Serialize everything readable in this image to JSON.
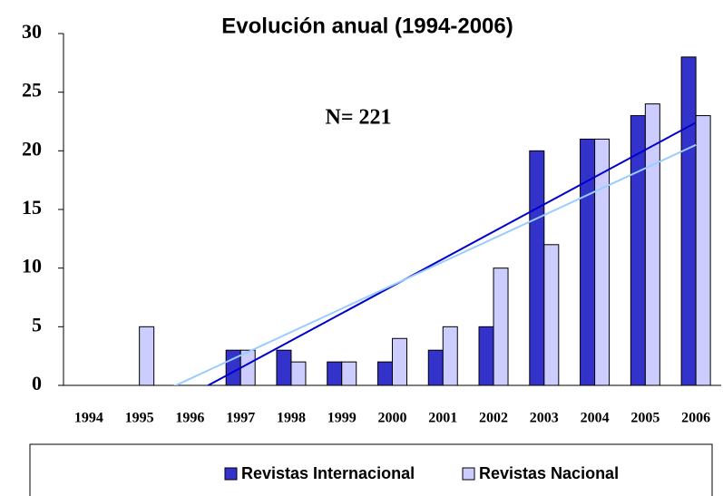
{
  "chart_data": {
    "type": "bar",
    "title": "Evolución anual (1994-2006)",
    "annotation": "N= 221",
    "categories": [
      "1994",
      "1995",
      "1996",
      "1997",
      "1998",
      "1999",
      "2000",
      "2001",
      "2002",
      "2003",
      "2004",
      "2005",
      "2006"
    ],
    "series": [
      {
        "name": "Revistas Internacional",
        "color": "#3333cc",
        "trend_color": "#0000cc",
        "values": [
          0,
          0,
          0,
          3,
          3,
          2,
          2,
          3,
          5,
          20,
          21,
          23,
          28
        ]
      },
      {
        "name": "Revistas Nacional",
        "color": "#ccccff",
        "trend_color": "#99ccff",
        "values": [
          0,
          5,
          0,
          3,
          2,
          2,
          4,
          5,
          10,
          12,
          21,
          24,
          23
        ]
      }
    ],
    "ylim": [
      0,
      30
    ],
    "yticks": [
      0,
      5,
      10,
      15,
      20,
      25,
      30
    ],
    "trendline": true,
    "legend": "bottom"
  }
}
